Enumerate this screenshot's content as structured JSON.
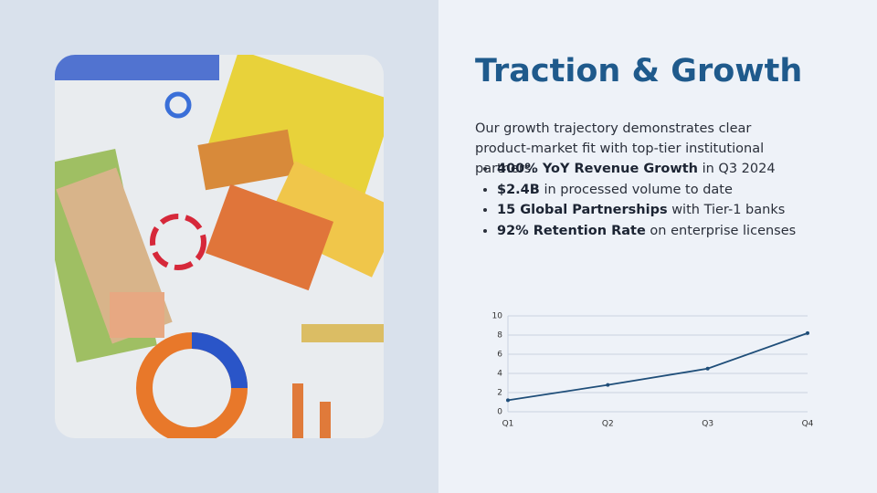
{
  "slide": {
    "title": "Traction & Growth",
    "intro": "Our growth trajectory demonstrates clear product-market fit with top-tier institutional partners.",
    "bullets": [
      {
        "bold": "400% YoY Revenue Growth",
        "text": "in Q3 2024"
      },
      {
        "bold": "$2.4B",
        "text": "in processed volume to date"
      },
      {
        "bold": "15 Global Partnerships",
        "text": "with Tier-1 banks"
      },
      {
        "bold": "92% Retention Rate",
        "text": "on enterprise licenses"
      }
    ]
  },
  "chart_data": {
    "type": "line",
    "categories": [
      "Q1",
      "Q2",
      "Q3",
      "Q4"
    ],
    "values": [
      1.2,
      2.8,
      4.5,
      8.2
    ],
    "color": "#1f4e79",
    "ylim": [
      0,
      10
    ],
    "yticks": [
      0,
      2,
      4,
      6,
      8,
      10
    ],
    "grid": true
  }
}
